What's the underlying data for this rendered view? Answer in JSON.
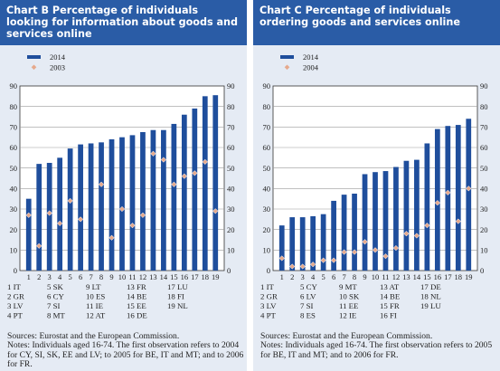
{
  "charts": [
    {
      "id": "B",
      "title": "Chart B Percentage of individuals looking for information about goods and services online",
      "source": "Sources: Eurostat and the European Commission.",
      "notes": "Notes: Individuals aged 16-74. The first observation refers to 2004 for CY, SI, SK, EE and LV; to 2005 for BE, IT and MT; and to 2006 for FR.",
      "country_key": [
        [
          "1 IT",
          "5 SK",
          "9 LT",
          "13 FR",
          "17 LU"
        ],
        [
          "2 GR",
          "6 CY",
          "10 ES",
          "14 BE",
          "18 FI"
        ],
        [
          "3 LV",
          "7 SI",
          "11 IE",
          "15 EE",
          "19 NL"
        ],
        [
          "4 PT",
          "8 MT",
          "12 AT",
          "16 DE",
          ""
        ]
      ]
    },
    {
      "id": "C",
      "title": "Chart C Percentage of individuals ordering goods and services online",
      "source": "Sources: Eurostat and the European Commission.",
      "notes": "Notes: Individuals aged 16-74. The first observation refers to 2005 for BE, IT and MT; and to 2006 for FR.",
      "country_key": [
        [
          "1 IT",
          "5 CY",
          "9 MT",
          "13 AT",
          "17 DE"
        ],
        [
          "2 GR",
          "6 LV",
          "10 SK",
          "14 BE",
          "18 NL"
        ],
        [
          "3 LV",
          "7 SI",
          "11 EE",
          "15 FR",
          "19 LU"
        ],
        [
          "4 PT",
          "8 ES",
          "12 IE",
          "16 FI",
          ""
        ]
      ]
    }
  ],
  "chart_data": [
    {
      "type": "bar",
      "categories": [
        "1",
        "2",
        "3",
        "4",
        "5",
        "6",
        "7",
        "8",
        "9",
        "10",
        "11",
        "12",
        "13",
        "14",
        "15",
        "16",
        "17",
        "18",
        "19"
      ],
      "series": [
        {
          "name": "2014",
          "kind": "bar",
          "color": "#1f4e9c",
          "values": [
            35,
            52,
            52.5,
            55,
            59.5,
            61.5,
            62,
            62.5,
            64,
            65,
            66,
            67.5,
            68.5,
            68.5,
            71.5,
            76,
            79,
            85,
            85.5
          ]
        },
        {
          "name": "2003",
          "kind": "marker",
          "color": "#e6a98c",
          "values": [
            27,
            12,
            28,
            23,
            34,
            25,
            null,
            42,
            16,
            30,
            22,
            27,
            57,
            54,
            42,
            46,
            47.5,
            53,
            29
          ]
        }
      ],
      "ylim": [
        0,
        90
      ],
      "yticks": [
        0,
        10,
        20,
        30,
        40,
        50,
        60,
        70,
        80,
        90
      ],
      "grid": true,
      "legend": "top-left"
    },
    {
      "type": "bar",
      "categories": [
        "1",
        "2",
        "3",
        "4",
        "5",
        "6",
        "7",
        "8",
        "9",
        "10",
        "11",
        "12",
        "13",
        "14",
        "15",
        "16",
        "17",
        "18",
        "19"
      ],
      "series": [
        {
          "name": "2014",
          "kind": "bar",
          "color": "#1f4e9c",
          "values": [
            22,
            26,
            26,
            26.5,
            27.5,
            34,
            37,
            37.5,
            47,
            48,
            48.5,
            50.5,
            53.5,
            54,
            62,
            69,
            70.5,
            71,
            74
          ]
        },
        {
          "name": "2004",
          "kind": "marker",
          "color": "#e6a98c",
          "values": [
            6,
            2,
            2,
            3,
            5,
            5,
            9,
            9,
            14,
            10,
            7,
            11,
            18,
            17,
            22,
            33,
            38,
            24,
            40
          ]
        }
      ],
      "ylim": [
        0,
        90
      ],
      "yticks": [
        0,
        10,
        20,
        30,
        40,
        50,
        60,
        70,
        80,
        90
      ],
      "grid": true,
      "legend": "top-left"
    }
  ]
}
